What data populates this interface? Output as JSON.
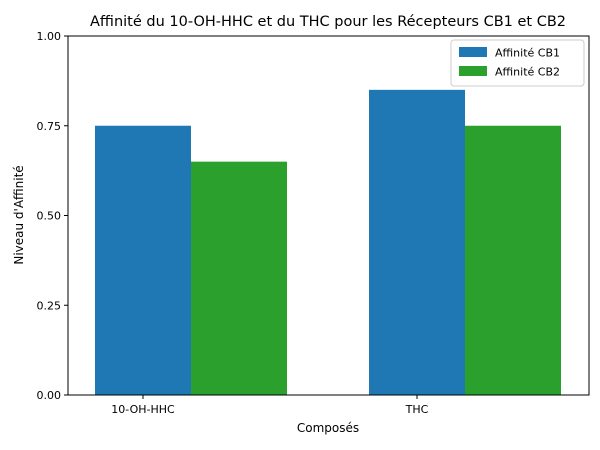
{
  "chart_data": {
    "type": "bar",
    "title": "Affinité du 10-OH-HHC et du THC pour les Récepteurs CB1 et CB2",
    "xlabel": "Composés",
    "ylabel": "Niveau d'Affinité",
    "categories": [
      "10-OH-HHC",
      "THC"
    ],
    "series": [
      {
        "name": "Affinité CB1",
        "values": [
          0.75,
          0.85
        ],
        "color": "#1f77b4"
      },
      {
        "name": "Affinité CB2",
        "values": [
          0.65,
          0.75
        ],
        "color": "#2ca02c"
      }
    ],
    "ylim": [
      0,
      1
    ],
    "yticks": [
      "0.00",
      "0.25",
      "0.50",
      "0.75",
      "1.00"
    ],
    "grid": false,
    "legend": "top-right"
  }
}
